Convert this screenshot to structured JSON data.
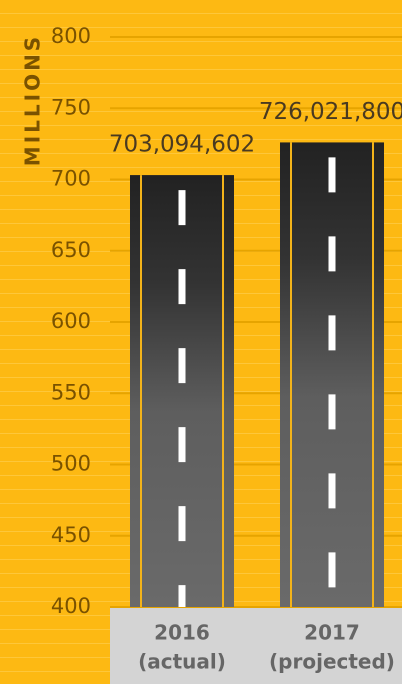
{
  "chart_data": {
    "type": "bar",
    "y_label": "MILLIONS",
    "categories": [
      "2016",
      "2017"
    ],
    "category_notes": [
      "(actual)",
      "(projected)"
    ],
    "values": [
      703.094602,
      726.0218
    ],
    "value_labels": [
      "703,094,602",
      "726,021,800"
    ],
    "ylim": [
      400,
      800
    ],
    "yticks": [
      400,
      450,
      500,
      550,
      600,
      650,
      700,
      750,
      800
    ],
    "grid": true
  }
}
